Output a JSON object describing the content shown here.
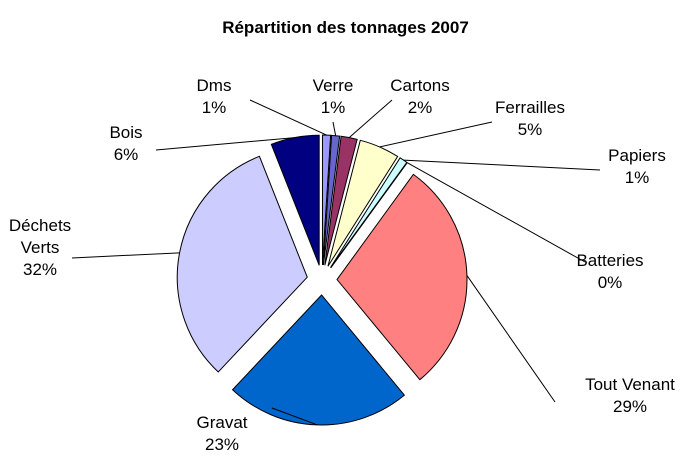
{
  "chart_data": {
    "type": "pie",
    "title": "Répartition des tonnages 2007",
    "categories": [
      "Dms",
      "Verre",
      "Cartons",
      "Ferrailles",
      "Papiers",
      "Batteries",
      "Tout Venant",
      "Gravat",
      "Déchets Verts",
      "Bois"
    ],
    "values": [
      1,
      1,
      2,
      5,
      1,
      0,
      29,
      23,
      32,
      6
    ],
    "value_labels": [
      "1%",
      "1%",
      "2%",
      "5%",
      "1%",
      "0%",
      "29%",
      "23%",
      "32%",
      "6%"
    ],
    "colors": [
      "#9999ff",
      "#6666cc",
      "#993366",
      "#ffffcc",
      "#ccffff",
      "#660066",
      "#ff8080",
      "#0066cc",
      "#ccccff",
      "#000080"
    ]
  }
}
